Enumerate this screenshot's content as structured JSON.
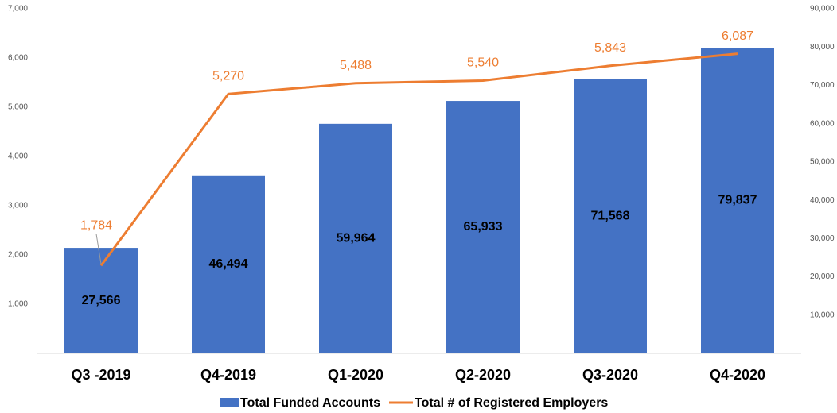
{
  "chart_data": {
    "type": "bar",
    "categories": [
      "Q3 -2019",
      "Q4-2019",
      "Q1-2020",
      "Q2-2020",
      "Q3-2020",
      "Q4-2020"
    ],
    "series": [
      {
        "name": "Total Funded Accounts",
        "type": "bar",
        "axis": "y2",
        "color": "#4472c4",
        "values": [
          27566,
          46494,
          59964,
          65933,
          71568,
          79837
        ],
        "value_labels": [
          "27,566",
          "46,494",
          "59,964",
          "65,933",
          "71,568",
          "79,837"
        ]
      },
      {
        "name": "Total # of Registered Employers",
        "type": "line",
        "axis": "y",
        "color": "#ed7d31",
        "values": [
          1784,
          5270,
          5488,
          5540,
          5843,
          6087
        ],
        "value_labels": [
          "1,784",
          "5,270",
          "5,488",
          "5,540",
          "5,843",
          "6,087"
        ]
      }
    ],
    "ylim": [
      0,
      7000
    ],
    "yticks": [
      {
        "value": 0,
        "label": "-"
      },
      {
        "value": 1000,
        "label": "1,000"
      },
      {
        "value": 2000,
        "label": "2,000"
      },
      {
        "value": 3000,
        "label": "3,000"
      },
      {
        "value": 4000,
        "label": "4,000"
      },
      {
        "value": 5000,
        "label": "5,000"
      },
      {
        "value": 6000,
        "label": "6,000"
      },
      {
        "value": 7000,
        "label": "7,000"
      }
    ],
    "y2lim": [
      0,
      90000
    ],
    "y2ticks": [
      {
        "value": 0,
        "label": "-"
      },
      {
        "value": 10000,
        "label": "10,000"
      },
      {
        "value": 20000,
        "label": "20,000"
      },
      {
        "value": 30000,
        "label": "30,000"
      },
      {
        "value": 40000,
        "label": "40,000"
      },
      {
        "value": 50000,
        "label": "50,000"
      },
      {
        "value": 60000,
        "label": "60,000"
      },
      {
        "value": 70000,
        "label": "70,000"
      },
      {
        "value": 80000,
        "label": "80,000"
      },
      {
        "value": 90000,
        "label": "90,000"
      }
    ],
    "legend": "bottom"
  }
}
